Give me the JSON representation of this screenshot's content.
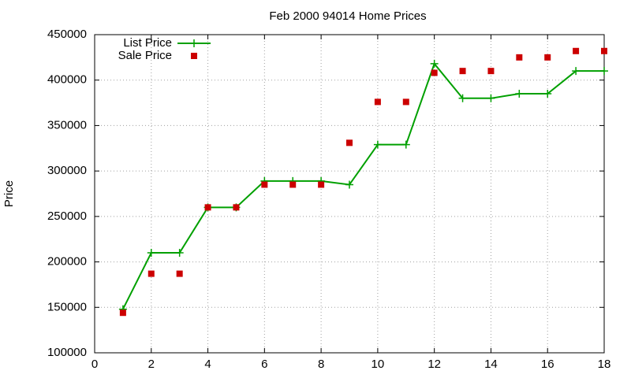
{
  "chart_data": {
    "type": "line",
    "title": "Feb 2000 94014 Home Prices",
    "y_label": "Price",
    "x": [
      1,
      2,
      3,
      4,
      5,
      6,
      7,
      8,
      9,
      10,
      11,
      12,
      13,
      14,
      15,
      16,
      17,
      18
    ],
    "series": [
      {
        "name": "List Price",
        "color": "#00a000",
        "style": "linespoints",
        "values": [
          148000,
          210000,
          210000,
          260000,
          260000,
          289000,
          289000,
          289000,
          285000,
          329000,
          329000,
          418000,
          380000,
          380000,
          385000,
          385000,
          410000,
          410000
        ]
      },
      {
        "name": "Sale Price",
        "color": "#cc0000",
        "style": "points",
        "values": [
          144000,
          187000,
          187000,
          260000,
          260000,
          285000,
          285000,
          285000,
          331000,
          376000,
          376000,
          408000,
          410000,
          410000,
          425000,
          425000,
          432000,
          432000
        ]
      }
    ],
    "xlim": [
      0,
      18
    ],
    "xticks": [
      0,
      2,
      4,
      6,
      8,
      10,
      12,
      14,
      16,
      18
    ],
    "ylim": [
      100000,
      450000
    ],
    "yticks": [
      100000,
      150000,
      200000,
      250000,
      300000,
      350000,
      400000,
      450000
    ],
    "grid": true,
    "legend_position": "top-left"
  }
}
